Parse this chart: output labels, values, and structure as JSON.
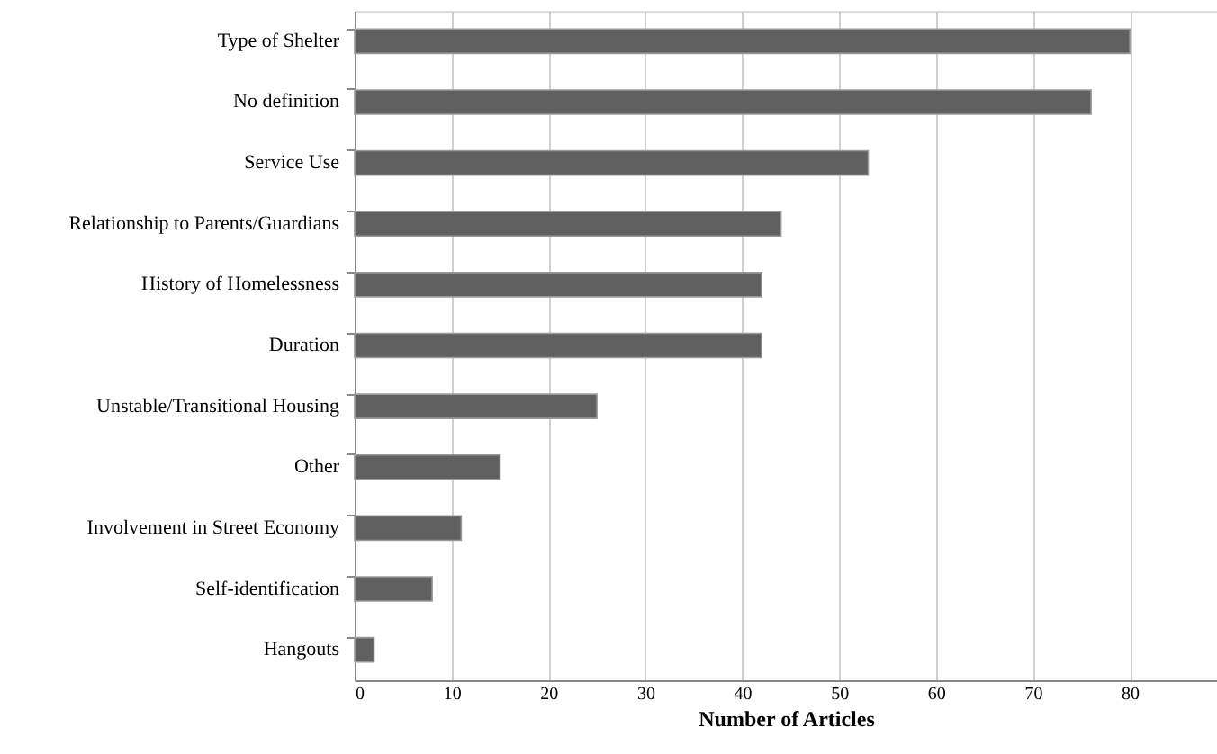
{
  "chart_data": {
    "type": "bar",
    "orientation": "horizontal",
    "xlabel": "Number of Articles",
    "categories": [
      "Type of Shelter",
      "No definition",
      "Service Use",
      "Relationship to Parents/Guardians",
      "History of Homelessness",
      "Duration",
      "Unstable/Transitional Housing",
      "Other",
      "Involvement in Street Economy",
      "Self-identification",
      "Hangouts"
    ],
    "values": [
      80,
      76,
      53,
      44,
      42,
      42,
      25,
      15,
      11,
      8,
      2
    ],
    "color": "#606060",
    "xlim": [
      0,
      89
    ],
    "xticks": [
      0,
      10,
      20,
      30,
      40,
      50,
      60,
      70,
      80
    ],
    "grid": "x"
  }
}
